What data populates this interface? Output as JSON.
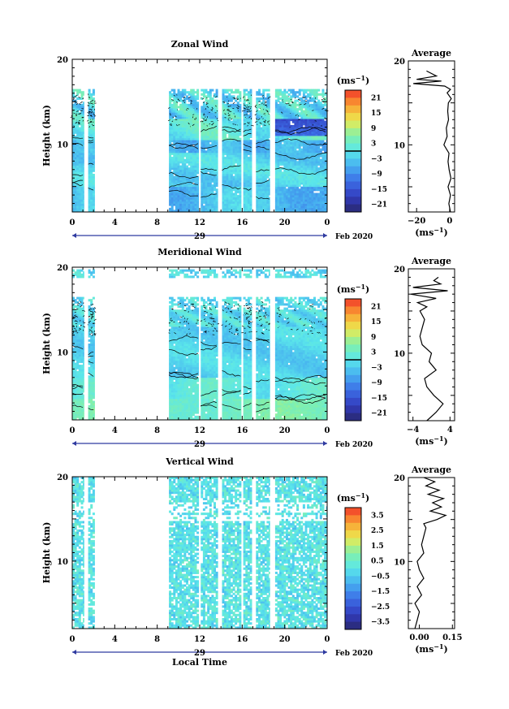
{
  "chart_data": [
    {
      "type": "heatmap",
      "title": "Zonal Wind",
      "ylabel": "Height (km)",
      "xlabel": "",
      "xlim": [
        0,
        24
      ],
      "ylim": [
        2,
        20
      ],
      "x_ticks": [
        "0",
        "4",
        "8",
        "12",
        "16",
        "20",
        "0"
      ],
      "y_ticks": [
        "20",
        "10"
      ],
      "date_label": "29",
      "month_label": "Feb 2020",
      "colorbar": {
        "unit": "(ms",
        "unit_exp": "−1",
        "unit_close": ")",
        "ticks": [
          "21",
          "15",
          "9",
          "3",
          "−3",
          "−9",
          "−15",
          "−21"
        ],
        "range": [
          -24,
          24
        ]
      },
      "data_columns_hours": [
        [
          0,
          1.1
        ],
        [
          1.5,
          2.1
        ],
        [
          9.1,
          11.9
        ],
        [
          12.1,
          13.7
        ],
        [
          14.1,
          15.9
        ],
        [
          16.1,
          16.9
        ],
        [
          17.3,
          18.6
        ],
        [
          19.1,
          24
        ]
      ],
      "field_summary": "eastward wind -6 to 6 m/s below 10 km, strong westward near 12 km from 19h",
      "average_profile": {
        "title": "Average",
        "xlabel": "(ms",
        "xlabel_exp": "−1",
        "xlabel_close": ")",
        "x_ticks": [
          "−20",
          "0"
        ],
        "xlim": [
          -25,
          3
        ],
        "y_ticks": [
          "20",
          "10"
        ],
        "height_km": [
          2,
          3,
          4,
          5,
          6,
          7,
          8,
          9,
          10,
          11,
          12,
          13,
          14,
          15,
          15.5,
          16.2,
          16.6,
          17,
          17.3,
          17.6,
          17.8,
          18.2,
          18.8
        ],
        "value": [
          0.5,
          -0.5,
          0.5,
          -1.0,
          0.8,
          -0.3,
          -1.0,
          -0.4,
          -3.5,
          -1.5,
          -2.0,
          -0.7,
          -1.2,
          -0.8,
          1.0,
          -1.5,
          0.5,
          -3,
          -22,
          -5,
          -20,
          -8,
          -14
        ]
      }
    },
    {
      "type": "heatmap",
      "title": "Meridional Wind",
      "ylabel": "Height (km)",
      "xlabel": "",
      "xlim": [
        0,
        24
      ],
      "ylim": [
        2,
        20
      ],
      "x_ticks": [
        "0",
        "4",
        "8",
        "12",
        "16",
        "20",
        "0"
      ],
      "y_ticks": [
        "20",
        "10"
      ],
      "date_label": "29",
      "month_label": "Feb 2020",
      "colorbar": {
        "unit": "(ms",
        "unit_exp": "−1",
        "unit_close": ")",
        "ticks": [
          "21",
          "15",
          "9",
          "3",
          "−3",
          "−9",
          "−15",
          "−21"
        ],
        "range": [
          -24,
          24
        ]
      },
      "data_columns_hours": [
        [
          0,
          1.1
        ],
        [
          1.5,
          2.1
        ],
        [
          9.1,
          11.9
        ],
        [
          12.1,
          13.7
        ],
        [
          14.1,
          15.9
        ],
        [
          16.1,
          16.9
        ],
        [
          17.3,
          18.6
        ],
        [
          19.1,
          24
        ]
      ],
      "field_summary": "northward wind up to 4 m/s near 4 km, weak flow aloft",
      "average_profile": {
        "title": "Average",
        "xlabel": "(ms",
        "xlabel_exp": "−1",
        "xlabel_close": ")",
        "x_ticks": [
          "−4",
          "4"
        ],
        "xlim": [
          -5,
          5
        ],
        "y_ticks": [
          "20",
          "10"
        ],
        "height_km": [
          2,
          3,
          4,
          5,
          6,
          7,
          8,
          9,
          10,
          11,
          12,
          13,
          14,
          15,
          15.5,
          16,
          16.5,
          17,
          17.4,
          17.8,
          18.2,
          18.6,
          19
        ],
        "value": [
          -1.0,
          1.0,
          2.5,
          0.5,
          -1.0,
          -1.5,
          1.0,
          -0.5,
          0.0,
          -2.0,
          -2.5,
          -2.0,
          -1.5,
          -2.5,
          -1.0,
          -3.0,
          1.0,
          -4.5,
          3.5,
          -4.0,
          2.0,
          0.5,
          1.5
        ]
      }
    },
    {
      "type": "heatmap",
      "title": "Vertical Wind",
      "ylabel": "Height (km)",
      "xlabel": "Local Time",
      "xlim": [
        0,
        24
      ],
      "ylim": [
        2,
        20
      ],
      "x_ticks": [
        "0",
        "4",
        "8",
        "12",
        "16",
        "20",
        "0"
      ],
      "y_ticks": [
        "20",
        "10"
      ],
      "date_label": "29",
      "month_label": "Feb 2020",
      "colorbar": {
        "unit": "(ms",
        "unit_exp": "−1",
        "unit_close": ")",
        "ticks": [
          "3.5",
          "2.5",
          "1.5",
          "0.5",
          "−0.5",
          "−1.5",
          "−2.5",
          "−3.5"
        ],
        "range": [
          -4,
          4
        ]
      },
      "data_columns_hours": [
        [
          0,
          1.1
        ],
        [
          1.5,
          2.1
        ],
        [
          9.1,
          11.9
        ],
        [
          12.1,
          13.7
        ],
        [
          14.1,
          15.9
        ],
        [
          16.1,
          16.9
        ],
        [
          17.3,
          18.6
        ],
        [
          19.1,
          24
        ]
      ],
      "field_summary": "vertical wind within ±0.5 m/s throughout",
      "average_profile": {
        "title": "Average",
        "xlabel": "(ms",
        "xlabel_exp": "−1",
        "xlabel_close": ")",
        "x_ticks": [
          "0.00",
          "0.15"
        ],
        "xlim": [
          -0.05,
          0.16
        ],
        "y_ticks": [
          "20",
          "10"
        ],
        "height_km": [
          2,
          3,
          4,
          5,
          6,
          7,
          8,
          9,
          10,
          11,
          12,
          13,
          14,
          14.5,
          15,
          15.5,
          16,
          16.5,
          17,
          17.5,
          18,
          18.5,
          19,
          19.5,
          20
        ],
        "value": [
          -0.02,
          -0.01,
          0.0,
          -0.02,
          0.01,
          -0.01,
          0.02,
          0.0,
          -0.01,
          0.02,
          0.01,
          0.02,
          0.03,
          0.02,
          0.08,
          0.12,
          0.05,
          0.1,
          0.06,
          0.11,
          0.04,
          0.09,
          0.03,
          0.07,
          0.02
        ]
      }
    }
  ]
}
